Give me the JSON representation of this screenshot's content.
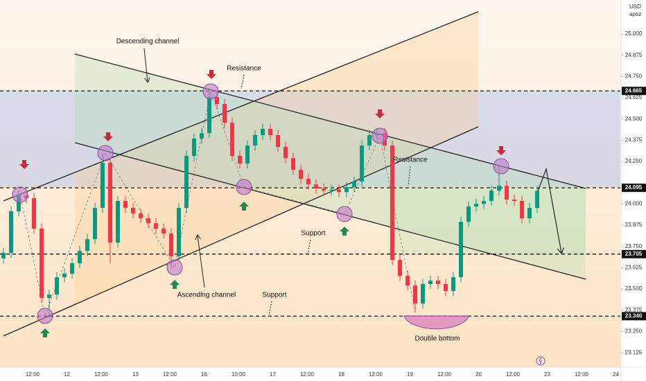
{
  "chart_data": {
    "type": "candlestick",
    "currency": "USD",
    "symbol": "apoz",
    "ylim": [
      23.04,
      25.2
    ],
    "yticks": [
      {
        "value": 25,
        "label": "25.000"
      },
      24.875,
      {
        "value": 24.75,
        "label": "24.750"
      },
      24.625,
      {
        "value": 24.5,
        "label": "24.500"
      },
      24.375,
      {
        "value": 24.25,
        "label": "24.250"
      },
      {
        "value": 24,
        "label": "24.000"
      },
      23.875,
      {
        "value": 23.75,
        "label": "23.750"
      },
      23.625,
      {
        "value": 23.5,
        "label": "23.500"
      },
      23.375,
      {
        "value": 23.25,
        "label": "23.250"
      },
      23.125
    ],
    "levels": [
      24.665,
      24.095,
      23.705,
      {
        "value": 23.34,
        "label": "23.340"
      }
    ],
    "xlabels": [
      "12:00",
      "12",
      "12:00",
      "13",
      "12:00",
      "16",
      "10:00",
      "17",
      "12:00",
      "18",
      "12:00",
      "19",
      "12:00",
      "20",
      "12:00",
      "23",
      "12:00",
      "24"
    ],
    "up_color": "#089981",
    "down_color": "#f23645",
    "open": [
      23.68,
      23.712,
      23.957,
      24.05,
      24.034,
      23.855,
      23.447,
      23.467,
      23.569,
      23.59,
      23.651,
      23.724,
      23.793,
      23.977,
      24.242,
      23.773,
      24.018,
      23.977,
      23.944,
      23.916,
      23.887,
      23.855,
      23.826,
      23.692,
      23.977,
      24.283,
      24.385,
      24.417,
      24.629,
      24.588,
      24.478,
      24.283,
      24.238,
      24.344,
      24.405,
      24.442,
      24.405,
      24.336,
      24.27,
      24.201,
      24.148,
      24.115,
      24.091,
      24.079,
      24.085,
      24.07,
      24.099,
      24.132,
      24.344,
      24.405,
      24.417,
      24.344,
      23.671,
      23.577,
      23.52,
      23.414,
      23.529,
      23.549,
      23.529,
      23.488,
      23.569,
      23.895,
      23.985,
      24.001,
      24.018,
      24.079,
      24.107,
      24.026,
      24.018,
      23.916,
      23.977
    ],
    "high": [
      23.742,
      23.987,
      24.08,
      24.08,
      24.064,
      23.885,
      23.497,
      23.599,
      23.62,
      23.681,
      23.754,
      23.823,
      24.007,
      24.3,
      24.272,
      24.048,
      24.048,
      24.007,
      23.974,
      23.946,
      23.917,
      23.885,
      23.856,
      24.007,
      24.313,
      24.415,
      24.447,
      24.68,
      24.659,
      24.618,
      24.508,
      24.313,
      24.374,
      24.435,
      24.472,
      24.472,
      24.435,
      24.366,
      24.3,
      24.231,
      24.178,
      24.145,
      24.121,
      24.115,
      24.115,
      24.129,
      24.162,
      24.374,
      24.435,
      24.447,
      24.447,
      24.374,
      23.701,
      23.607,
      23.55,
      23.559,
      23.579,
      23.579,
      23.559,
      23.599,
      23.925,
      24.015,
      24.031,
      24.048,
      24.109,
      24.22,
      24.137,
      24.056,
      24.048,
      24.007,
      24.105
    ],
    "low": [
      23.65,
      23.682,
      23.927,
      24.004,
      23.825,
      23.417,
      23.33,
      23.437,
      23.539,
      23.56,
      23.621,
      23.694,
      23.763,
      23.947,
      23.65,
      23.743,
      23.947,
      23.914,
      23.886,
      23.857,
      23.825,
      23.796,
      23.62,
      23.662,
      23.947,
      24.253,
      24.355,
      24.387,
      24.558,
      24.448,
      24.253,
      24.208,
      24.208,
      24.314,
      24.375,
      24.375,
      24.306,
      24.24,
      24.171,
      24.118,
      24.085,
      24.061,
      24.049,
      24.049,
      24.04,
      24.04,
      24.069,
      24.102,
      24.314,
      24.375,
      24.314,
      23.641,
      23.547,
      23.49,
      23.36,
      23.384,
      23.499,
      23.499,
      23.458,
      23.458,
      23.539,
      23.865,
      23.955,
      23.971,
      23.988,
      24.049,
      23.996,
      23.988,
      23.886,
      23.886,
      23.947
    ],
    "close": [
      23.712,
      23.957,
      24.05,
      24.034,
      23.855,
      23.447,
      23.467,
      23.569,
      23.59,
      23.651,
      23.724,
      23.793,
      23.977,
      24.242,
      23.773,
      24.018,
      23.977,
      23.944,
      23.916,
      23.887,
      23.855,
      23.826,
      23.692,
      23.977,
      24.283,
      24.385,
      24.417,
      24.629,
      24.588,
      24.478,
      24.283,
      24.238,
      24.344,
      24.405,
      24.442,
      24.405,
      24.336,
      24.27,
      24.201,
      24.148,
      24.115,
      24.091,
      24.079,
      24.085,
      24.07,
      24.099,
      24.132,
      24.344,
      24.405,
      24.417,
      24.344,
      23.671,
      23.577,
      23.52,
      23.414,
      23.529,
      23.549,
      23.529,
      23.488,
      23.569,
      23.895,
      23.985,
      24.001,
      24.018,
      24.079,
      24.107,
      24.026,
      24.018,
      23.916,
      23.977,
      24.075
    ],
    "annotations": [
      "Descending channel",
      "Resistance",
      "Resistance",
      "Support",
      "Ascending channel",
      "Support",
      "Double bottom"
    ]
  }
}
